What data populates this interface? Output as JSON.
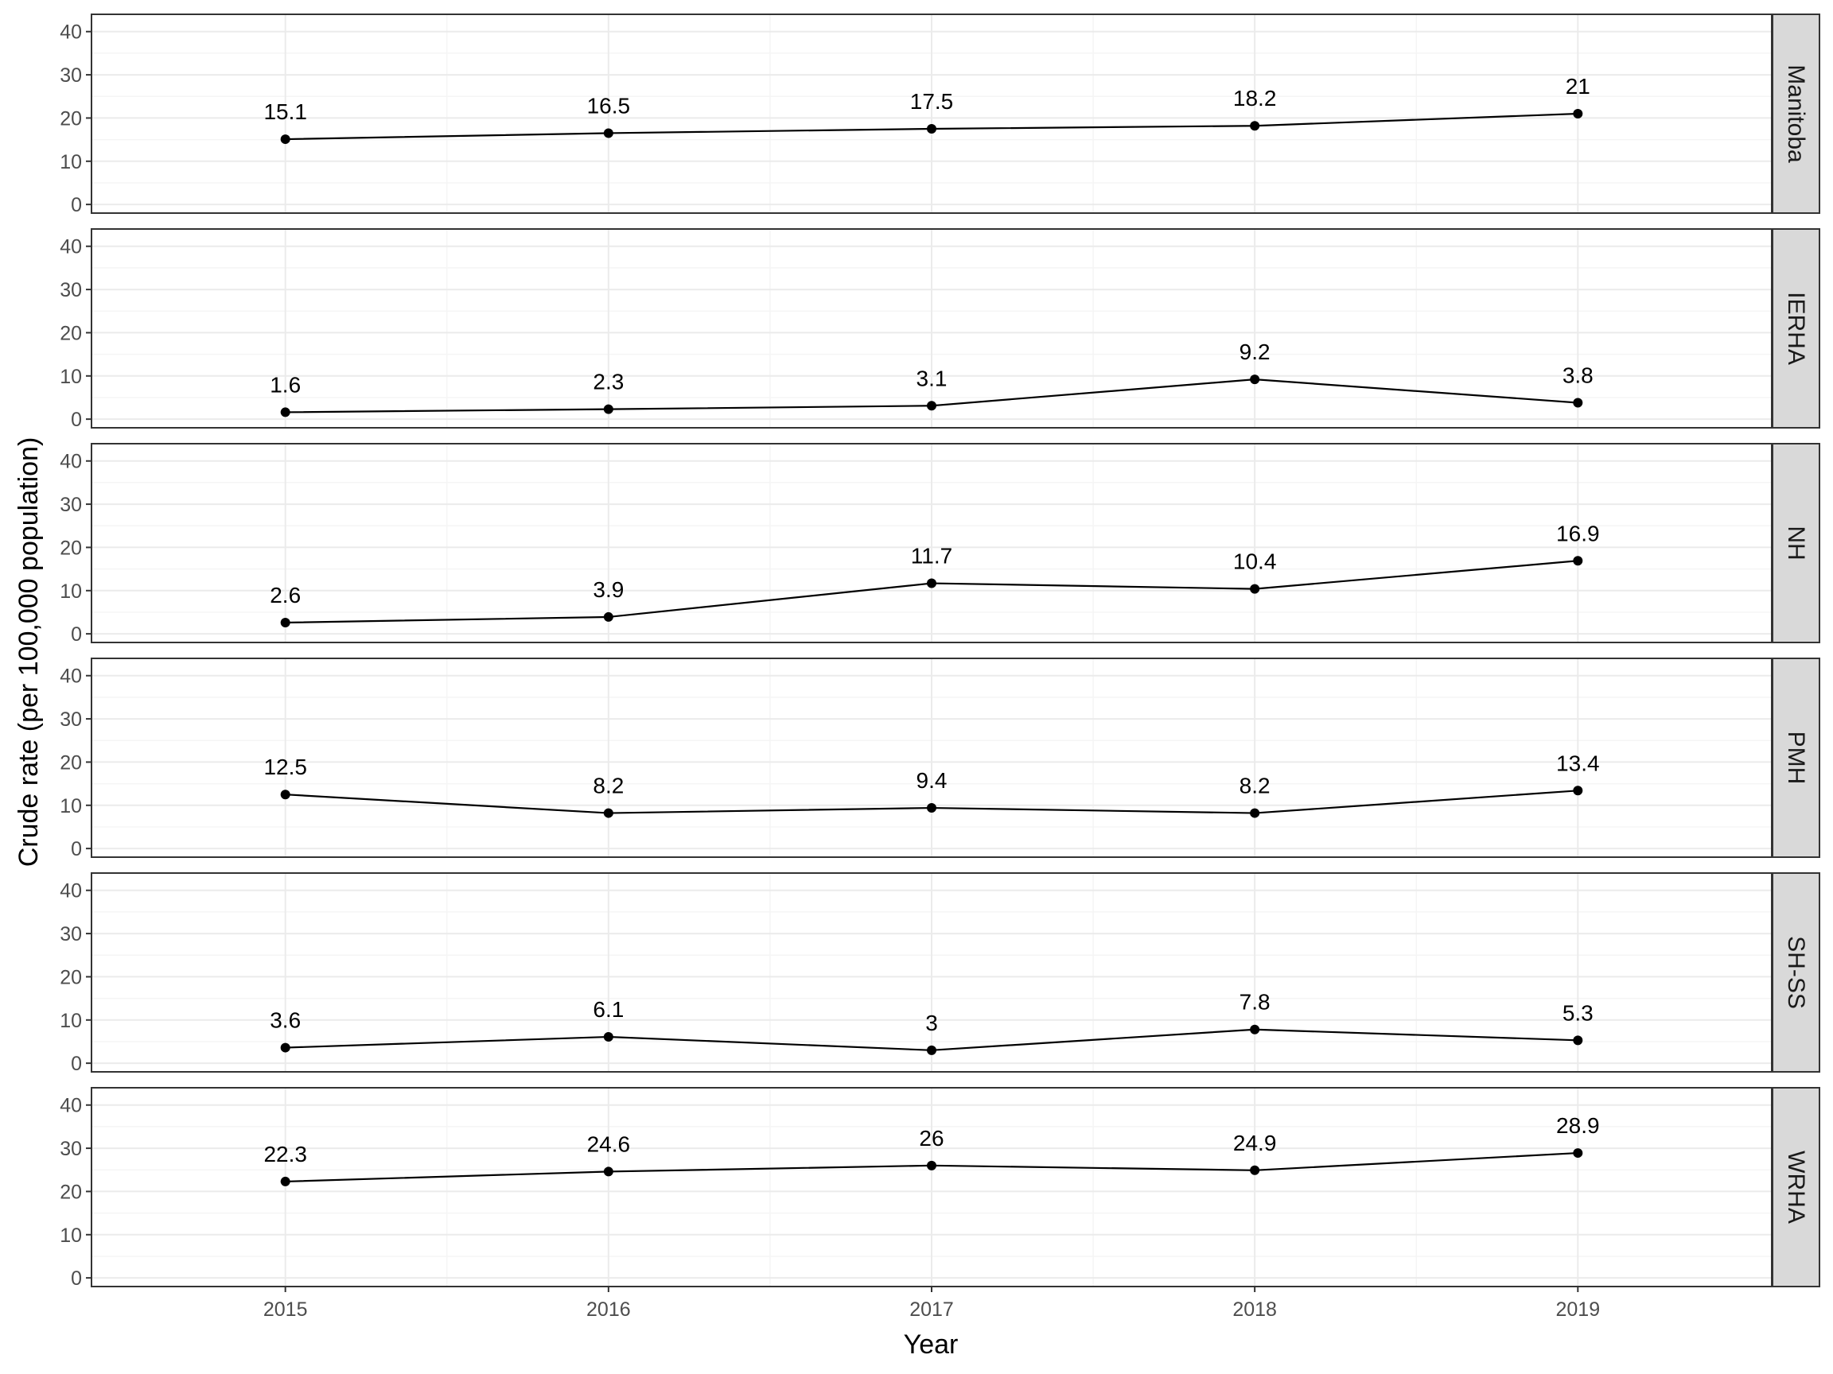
{
  "chart_data": {
    "type": "line",
    "xlabel": "Year",
    "ylabel": "Crude rate (per 100,000 population)",
    "x": [
      2015,
      2016,
      2017,
      2018,
      2019
    ],
    "x_tick_labels": [
      "2015",
      "2016",
      "2017",
      "2018",
      "2019"
    ],
    "xlim": [
      2014.4,
      2019.6
    ],
    "ylim": [
      -2,
      44
    ],
    "y_ticks": [
      0,
      10,
      20,
      30,
      40
    ],
    "y_tick_labels": [
      "0",
      "10",
      "20",
      "30",
      "40"
    ],
    "grid": true,
    "facet_strip_position": "right",
    "panels": [
      {
        "name": "Manitoba",
        "values": [
          15.1,
          16.5,
          17.5,
          18.2,
          21
        ],
        "labels": [
          "15.1",
          "16.5",
          "17.5",
          "18.2",
          "21"
        ]
      },
      {
        "name": "IERHA",
        "values": [
          1.6,
          2.3,
          3.1,
          9.2,
          3.8
        ],
        "labels": [
          "1.6",
          "2.3",
          "3.1",
          "9.2",
          "3.8"
        ]
      },
      {
        "name": "NH",
        "values": [
          2.6,
          3.9,
          11.7,
          10.4,
          16.9
        ],
        "labels": [
          "2.6",
          "3.9",
          "11.7",
          "10.4",
          "16.9"
        ]
      },
      {
        "name": "PMH",
        "values": [
          12.5,
          8.2,
          9.4,
          8.2,
          13.4
        ],
        "labels": [
          "12.5",
          "8.2",
          "9.4",
          "8.2",
          "13.4"
        ]
      },
      {
        "name": "SH-SS",
        "values": [
          3.6,
          6.1,
          3,
          7.8,
          5.3
        ],
        "labels": [
          "3.6",
          "6.1",
          "3",
          "7.8",
          "5.3"
        ]
      },
      {
        "name": "WRHA",
        "values": [
          22.3,
          24.6,
          26,
          24.9,
          28.9
        ],
        "labels": [
          "22.3",
          "24.6",
          "26",
          "24.9",
          "28.9"
        ]
      }
    ],
    "colors": {
      "line": "#000000",
      "point": "#000000",
      "panel_border": "#333333",
      "grid_major": "#ebebeb",
      "grid_minor": "#f5f5f5",
      "strip_fill": "#d9d9d9",
      "tick_text": "#4d4d4d"
    }
  }
}
